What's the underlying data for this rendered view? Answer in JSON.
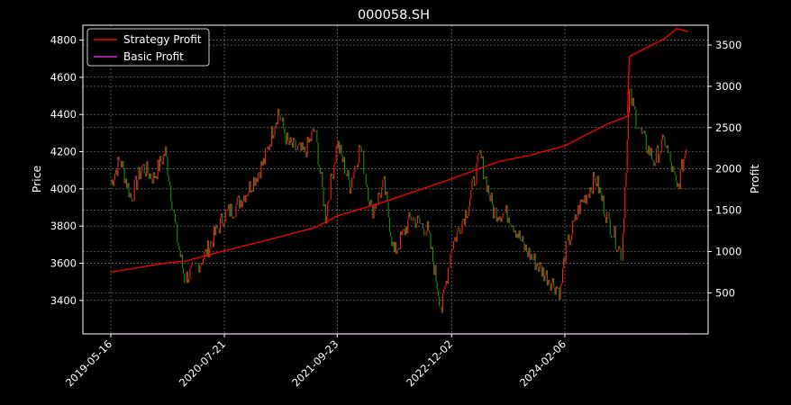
{
  "chart_data": {
    "type": "line",
    "title": "000058.SH",
    "xlabel": "",
    "ylabel": "Price",
    "y2label": "Profit",
    "x_ticks": [
      "2019-05-16",
      "2020-07-21",
      "2021-09-23",
      "2022-12-02",
      "2024-02-06"
    ],
    "ylim": [
      3220,
      4880
    ],
    "y_ticks": [
      3400,
      3600,
      3800,
      4000,
      4200,
      4400,
      4600,
      4800
    ],
    "y2lim": [
      3,
      3740
    ],
    "y2_ticks": [
      500,
      1000,
      1500,
      2000,
      2500,
      3000,
      3500
    ],
    "grid": true,
    "legend_position": "upper left",
    "legend": [
      "Strategy Profit",
      "Basic Profit"
    ],
    "colors": {
      "background": "#000000",
      "strategy_profit": "#ff0000",
      "basic_profit": "#cc33cc",
      "price_up": "#ff1a1a",
      "price_down": "#1a8c1a",
      "grid": "#8c8c8c",
      "axes": "#ffffff"
    },
    "price_series": {
      "name": "Price",
      "points": [
        [
          "2019-05-16",
          4030
        ],
        [
          "2019-06-20",
          4160
        ],
        [
          "2019-08-01",
          3950
        ],
        [
          "2019-09-12",
          4120
        ],
        [
          "2019-10-25",
          4060
        ],
        [
          "2019-12-10",
          4200
        ],
        [
          "2020-01-20",
          3760
        ],
        [
          "2020-02-20",
          3520
        ],
        [
          "2020-03-25",
          3560
        ],
        [
          "2020-05-10",
          3650
        ],
        [
          "2020-07-21",
          3860
        ],
        [
          "2020-08-30",
          3900
        ],
        [
          "2020-10-20",
          4000
        ],
        [
          "2020-12-20",
          4150
        ],
        [
          "2021-02-10",
          4420
        ],
        [
          "2021-03-20",
          4240
        ],
        [
          "2021-05-20",
          4190
        ],
        [
          "2021-06-30",
          4320
        ],
        [
          "2021-08-10",
          3850
        ],
        [
          "2021-09-23",
          4250
        ],
        [
          "2021-11-10",
          4020
        ],
        [
          "2021-12-20",
          4230
        ],
        [
          "2022-02-01",
          3880
        ],
        [
          "2022-03-20",
          4020
        ],
        [
          "2022-04-27",
          3650
        ],
        [
          "2022-07-01",
          3850
        ],
        [
          "2022-09-01",
          3780
        ],
        [
          "2022-10-25",
          3350
        ],
        [
          "2022-12-02",
          3690
        ],
        [
          "2023-02-01",
          3900
        ],
        [
          "2023-03-20",
          4180
        ],
        [
          "2023-05-10",
          3880
        ],
        [
          "2023-07-10",
          3860
        ],
        [
          "2023-09-01",
          3690
        ],
        [
          "2023-11-10",
          3560
        ],
        [
          "2024-01-20",
          3450
        ],
        [
          "2024-02-06",
          3650
        ],
        [
          "2024-04-01",
          3900
        ],
        [
          "2024-06-01",
          4060
        ],
        [
          "2024-07-15",
          3850
        ],
        [
          "2024-09-10",
          3640
        ],
        [
          "2024-10-08",
          4510
        ],
        [
          "2024-11-20",
          4300
        ],
        [
          "2025-01-10",
          4150
        ],
        [
          "2025-02-20",
          4260
        ],
        [
          "2025-04-08",
          3990
        ],
        [
          "2025-05-20",
          4280
        ]
      ]
    },
    "series": [
      {
        "name": "Strategy Profit",
        "axis": "right",
        "points": [
          [
            "2019-05-16",
            750
          ],
          [
            "2019-12-10",
            860
          ],
          [
            "2020-03-01",
            890
          ],
          [
            "2020-07-21",
            1010
          ],
          [
            "2020-12-20",
            1130
          ],
          [
            "2021-06-30",
            1290
          ],
          [
            "2021-09-23",
            1430
          ],
          [
            "2022-03-20",
            1600
          ],
          [
            "2022-12-02",
            1880
          ],
          [
            "2023-06-01",
            2090
          ],
          [
            "2023-09-20",
            2160
          ],
          [
            "2024-02-06",
            2280
          ],
          [
            "2024-07-15",
            2540
          ],
          [
            "2024-10-01",
            2640
          ],
          [
            "2024-10-08",
            3360
          ],
          [
            "2025-02-20",
            3580
          ],
          [
            "2025-04-07",
            3700
          ],
          [
            "2025-05-20",
            3660
          ]
        ]
      },
      {
        "name": "Basic Profit",
        "axis": "right",
        "points": [
          [
            "2019-05-16",
            3
          ],
          [
            "2025-05-20",
            3
          ]
        ]
      }
    ]
  }
}
